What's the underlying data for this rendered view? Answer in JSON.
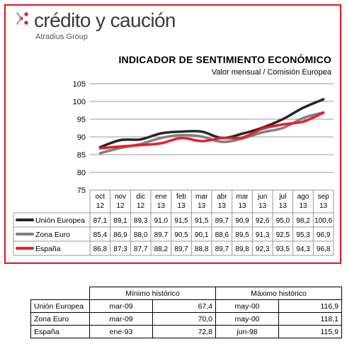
{
  "brand": {
    "name": "crédito y caución",
    "sub": "Atradius Group",
    "mark_color": "#e8141c"
  },
  "chart_title": "INDICADOR DE SENTIMIENTO ECONÓMICO",
  "chart_subtitle": "Valor mensual / Comisión Europea",
  "chart_data": {
    "type": "line",
    "categories": [
      "oct 12",
      "nov 12",
      "dic 12",
      "ene 13",
      "feb 13",
      "mar 13",
      "abr 13",
      "mar 13",
      "jun 13",
      "jul 13",
      "ago 13",
      "sep 13"
    ],
    "category_lines": [
      [
        "oct",
        "12"
      ],
      [
        "nov",
        "12"
      ],
      [
        "dic",
        "12"
      ],
      [
        "ene",
        "13"
      ],
      [
        "feb",
        "13"
      ],
      [
        "mar",
        "13"
      ],
      [
        "abr",
        "13"
      ],
      [
        "mar",
        "13"
      ],
      [
        "jun",
        "13"
      ],
      [
        "jul",
        "13"
      ],
      [
        "ago",
        "13"
      ],
      [
        "sep",
        "13"
      ]
    ],
    "ylim": [
      75,
      105
    ],
    "yticks": [
      75,
      80,
      85,
      90,
      95,
      100,
      105
    ],
    "grid": true,
    "legend": "data-table-below",
    "series": [
      {
        "name": "Unión Europea",
        "color": "#262626",
        "values": [
          87.1,
          89.1,
          89.3,
          91.0,
          91.5,
          91.5,
          89.7,
          90.9,
          92.6,
          95.0,
          98.2,
          100.6
        ],
        "labels": [
          "87,1",
          "89,1",
          "89,3",
          "91,0",
          "91,5",
          "91,5",
          "89,7",
          "90,9",
          "92,6",
          "95,0",
          "98,2",
          "100,6"
        ]
      },
      {
        "name": "Zona Euro",
        "color": "#7f7f7f",
        "values": [
          85.4,
          86.9,
          88.0,
          89.7,
          90.5,
          90.1,
          88.6,
          89.5,
          91.3,
          92.5,
          95.3,
          96.9
        ],
        "labels": [
          "85,4",
          "86,9",
          "88,0",
          "89,7",
          "90,5",
          "90,1",
          "88,6",
          "89,5",
          "91,3",
          "92,5",
          "95,3",
          "96,9"
        ]
      },
      {
        "name": "España",
        "color": "#ee1c25",
        "values": [
          86.8,
          87.3,
          87.7,
          88.2,
          89.7,
          88.8,
          89.7,
          89.8,
          92.3,
          93.5,
          94.3,
          96.8
        ],
        "labels": [
          "86,8",
          "87,3",
          "87,7",
          "88,2",
          "89,7",
          "88,8",
          "89,7",
          "89,8",
          "92,3",
          "93,5",
          "94,3",
          "96,8"
        ]
      }
    ]
  },
  "historic": {
    "header_min": "Mínimo histórico",
    "header_max": "Máximo histórico",
    "rows": [
      {
        "name": "Unión Europea",
        "min_date": "mar-09",
        "min_val": "67,4",
        "max_date": "may-00",
        "max_val": "116,9"
      },
      {
        "name": "Zona Euro",
        "min_date": "mar-09",
        "min_val": "70,0",
        "max_date": "may-00",
        "max_val": "118,1"
      },
      {
        "name": "España",
        "min_date": "ene-93",
        "min_val": "72,8",
        "max_date": "jun-98",
        "max_val": "115,9"
      }
    ]
  }
}
